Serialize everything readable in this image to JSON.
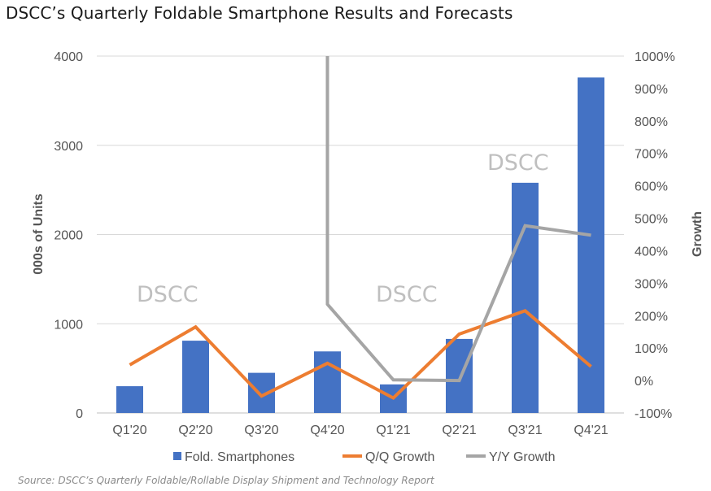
{
  "header": {
    "title": "DSCC’s Quarterly Foldable Smartphone Results and Forecasts",
    "source": "Source: DSCC’s Quarterly Foldable/Rollable Display Shipment and Technology Report"
  },
  "watermarks": [
    "DSCC",
    "DSCC",
    "DSCC"
  ],
  "chart_data": {
    "type": "bar",
    "categories": [
      "Q1'20",
      "Q2'20",
      "Q3'20",
      "Q4'20",
      "Q1'21",
      "Q2'21",
      "Q3'21",
      "Q4'21"
    ],
    "series": [
      {
        "name": "Fold. Smartphones",
        "type": "bar",
        "axis": "left",
        "color": "#4472C4",
        "values": [
          300,
          810,
          450,
          690,
          320,
          830,
          2580,
          3760
        ]
      },
      {
        "name": "Q/Q Growth",
        "type": "line",
        "axis": "right",
        "color": "#ED7D31",
        "values": [
          48,
          165,
          -48,
          53,
          -54,
          143,
          215,
          43
        ]
      },
      {
        "name": "Y/Y Growth",
        "type": "line",
        "axis": "right",
        "color": "#A5A5A5",
        "values": [
          null,
          null,
          null,
          235,
          2,
          0,
          477,
          448
        ],
        "offscale_start": {
          "x_index": 3,
          "value": 1000
        }
      }
    ],
    "yaxis_left": {
      "label": "000s of Units",
      "ylim": [
        0,
        4000
      ],
      "ticks": [
        "0",
        "1000",
        "2000",
        "3000",
        "4000"
      ]
    },
    "yaxis_right": {
      "label": "Growth",
      "ylim": [
        -100,
        1000
      ],
      "ticks": [
        "-100%",
        "0%",
        "100%",
        "200%",
        "300%",
        "400%",
        "500%",
        "600%",
        "700%",
        "800%",
        "900%",
        "1000%"
      ]
    },
    "gridlines": true,
    "legend": {
      "position": "bottom",
      "entries": [
        "Fold. Smartphones",
        "Q/Q Growth",
        "Y/Y Growth"
      ]
    }
  }
}
